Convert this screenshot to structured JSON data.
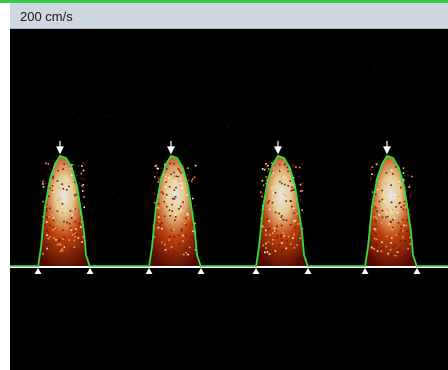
{
  "header": {
    "scale_label": "200 cm/s"
  },
  "colors": {
    "accent": "#33cc44",
    "trace": "#33dd44",
    "baseline": "#ffffff",
    "background": "#000000",
    "header_bg": "#cfd8e2"
  },
  "waveforms": [
    {
      "name": "cycle-1"
    },
    {
      "name": "cycle-2"
    },
    {
      "name": "cycle-3"
    },
    {
      "name": "cycle-4"
    }
  ]
}
